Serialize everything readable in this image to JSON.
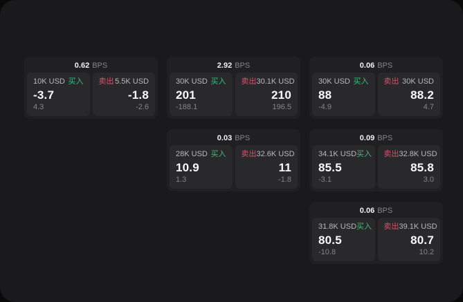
{
  "labels": {
    "bps_suffix": "BPS",
    "buy": "买入",
    "sell": "卖出"
  },
  "colors": {
    "buy_green": "#43b87a",
    "sell_red": "#d9506c",
    "panel_background": "#1a1a1c",
    "card_background": "#202022",
    "subpanel_background": "#29292c"
  },
  "cards": [
    {
      "bps": "0.62",
      "buy": {
        "amount": "10K USD",
        "value": "-3.7",
        "delta": "4.3"
      },
      "sell": {
        "amount": "5.5K USD",
        "value": "-1.8",
        "delta": "-2.6"
      }
    },
    {
      "bps": "2.92",
      "buy": {
        "amount": "30K USD",
        "value": "201",
        "delta": "-188.1"
      },
      "sell": {
        "amount": "30.1K USD",
        "value": "210",
        "delta": "196.5"
      }
    },
    {
      "bps": "0.06",
      "buy": {
        "amount": "30K USD",
        "value": "88",
        "delta": "-4.9"
      },
      "sell": {
        "amount": "30K USD",
        "value": "88.2",
        "delta": "4.7"
      }
    },
    {
      "bps": "0.03",
      "buy": {
        "amount": "28K USD",
        "value": "10.9",
        "delta": "1.3"
      },
      "sell": {
        "amount": "32.6K USD",
        "value": "11",
        "delta": "-1.8"
      }
    },
    {
      "bps": "0.09",
      "buy": {
        "amount": "34.1K USD",
        "value": "85.5",
        "delta": "-3.1"
      },
      "sell": {
        "amount": "32.8K USD",
        "value": "85.8",
        "delta": "3.0"
      }
    },
    {
      "bps": "0.06",
      "buy": {
        "amount": "31.8K USD",
        "value": "80.5",
        "delta": "-10.8"
      },
      "sell": {
        "amount": "39.1K USD",
        "value": "80.7",
        "delta": "10.2"
      }
    }
  ]
}
